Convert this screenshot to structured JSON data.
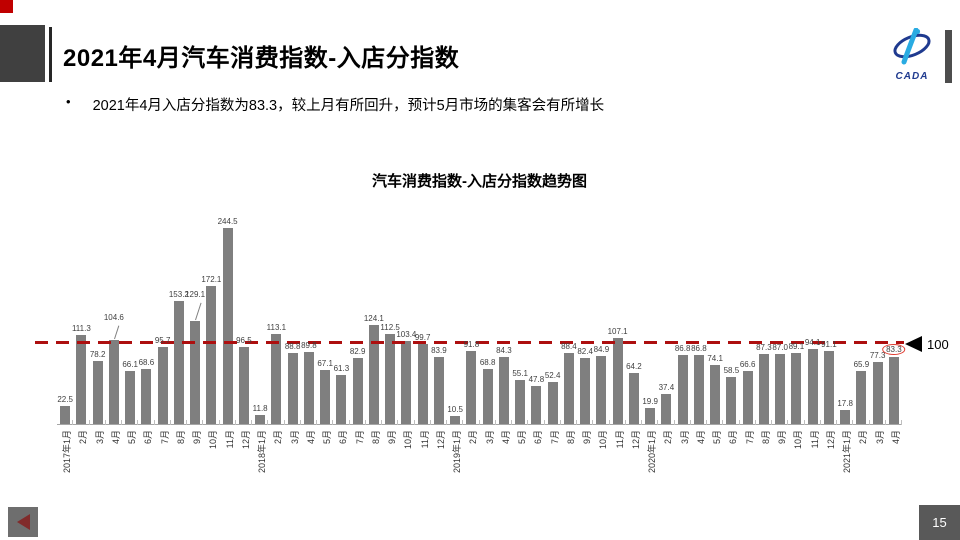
{
  "slide": {
    "title": "2021年4月汽车消费指数-入店分指数",
    "bullet": "2021年4月入店分指数为83.3，较上月有所回升，预计5月市场的集客会有所增长",
    "page_number": "15",
    "logo": {
      "text": "CADA"
    }
  },
  "chart_data": {
    "type": "bar",
    "title": "汽车消费指数-入店分指数趋势图",
    "categories": [
      "2017年1月",
      "2月",
      "3月",
      "4月",
      "5月",
      "6月",
      "7月",
      "8月",
      "9月",
      "10月",
      "11月",
      "12月",
      "2018年1月",
      "2月",
      "3月",
      "4月",
      "5月",
      "6月",
      "7月",
      "8月",
      "9月",
      "10月",
      "11月",
      "12月",
      "2019年1月",
      "2月",
      "3月",
      "4月",
      "5月",
      "6月",
      "7月",
      "8月",
      "9月",
      "10月",
      "11月",
      "12月",
      "2020年1月",
      "2月",
      "3月",
      "4月",
      "5月",
      "6月",
      "7月",
      "8月",
      "9月",
      "10月",
      "11月",
      "12月",
      "2021年1月",
      "2月",
      "3月",
      "4月"
    ],
    "values": [
      22.5,
      111.3,
      78.2,
      104.6,
      66.1,
      68.6,
      95.7,
      153.2,
      129.1,
      172.1,
      244.5,
      96.5,
      11.8,
      113.1,
      88.8,
      89.8,
      67.1,
      61.3,
      82.9,
      124.1,
      112.5,
      103.4,
      99.7,
      83.9,
      10.5,
      91.8,
      68.8,
      84.3,
      55.1,
      47.8,
      52.4,
      88.4,
      82.4,
      84.9,
      107.1,
      64.2,
      19.9,
      37.4,
      86.8,
      86.8,
      74.1,
      58.5,
      66.6,
      87.3,
      87.0,
      89.1,
      94.1,
      91.1,
      17.8,
      65.9,
      77.3,
      83.3
    ],
    "bar_color": "#7F7F7F",
    "value_label_color": "#404040",
    "reference_line": {
      "value": 100,
      "label": "100",
      "color": "#AD0F0F",
      "style": "dashed"
    },
    "highlight": {
      "category": "2021年4月",
      "value": 83.3,
      "style": "red-circle"
    },
    "ylim": [
      0,
      260
    ],
    "grid": "off",
    "legend": "none"
  },
  "colors": {
    "accent_red": "#C00000",
    "corner_gray": "#404040",
    "footer_gray": "#595959",
    "logo_blue": "#1F3A8F",
    "logo_light_blue": "#29ABE2"
  }
}
